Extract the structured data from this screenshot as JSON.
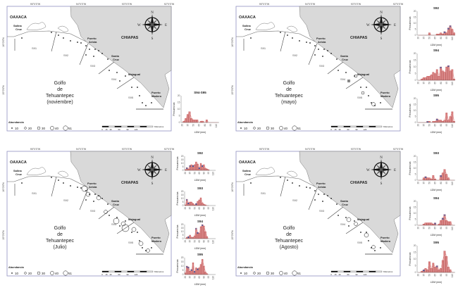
{
  "common": {
    "longitudes": [
      "95°0'0\"W",
      "94°0'0\"W",
      "93°0'0\"W",
      "92°0'0\"W"
    ],
    "latitudes": [
      "16°0'0\"N",
      "15°0'0\"N"
    ],
    "places": {
      "oaxaca": "OAXACA",
      "salina_cruz": [
        "Salina",
        "Cruz"
      ],
      "puerto_arista": [
        "Puerto",
        "Arista"
      ],
      "chiapas": "CHIAPAS",
      "santa_cruz": [
        "Santa",
        "Cruz"
      ],
      "majagual": "Majagual",
      "puerto_madero": [
        "Puerto",
        "Madero"
      ]
    },
    "zones": [
      "S91",
      "S92",
      "S93",
      "S94",
      "S95"
    ],
    "gulf": [
      "Golfo",
      "de",
      "Tehuantepec"
    ],
    "compass": {
      "n": "N",
      "s": "S",
      "e": "E",
      "w": "W"
    },
    "legend": {
      "title": "Abundancia",
      "values": [
        "10",
        "20",
        "30",
        "40",
        "51"
      ]
    },
    "scale": {
      "unit": "Kilómetros",
      "ticks": [
        "0",
        "15",
        "30",
        "60",
        "90",
        "120"
      ]
    },
    "hist_ylabel": "Frecuencias",
    "hist_xlabel": "LDM (mm)",
    "hist_xticks": [
      "20",
      "35",
      "50",
      "65",
      "80",
      "95",
      "110"
    ],
    "hist_yticks": [
      "0",
      "5",
      "10",
      "15",
      "20"
    ],
    "colors": {
      "land": "#d9d9d9",
      "bar": "#d98b8b",
      "bar_edge": "#b03030",
      "blue": "#3f5fa8",
      "frame": "#9090c0"
    }
  },
  "chart_data": [
    {
      "type": "bar",
      "panel": "noviembre",
      "title": "S94-S95",
      "xlabel": "LDM (mm)",
      "ylabel": "Frecuencias",
      "ylim": [
        0,
        20
      ],
      "bin_start": 20,
      "bin_width": 5,
      "values": [
        0,
        1,
        3,
        6,
        8,
        3,
        2,
        2,
        2,
        0,
        1,
        1,
        0,
        2,
        0,
        0,
        0,
        0,
        0,
        0
      ],
      "blue": []
    },
    {
      "type": "bar",
      "panel": "mayo",
      "title": "S92",
      "xlabel": "LDM (mm)",
      "ylabel": "Frecuencias",
      "ylim": [
        0,
        20
      ],
      "bin_start": 20,
      "bin_width": 5,
      "values": [
        0,
        0,
        0,
        0,
        0,
        0,
        2,
        0,
        0,
        0,
        1,
        1,
        2,
        1,
        3,
        2,
        6,
        8,
        5,
        2
      ],
      "blue": [
        14,
        16,
        17
      ]
    },
    {
      "type": "bar",
      "panel": "mayo",
      "title": "S94",
      "xlabel": "LDM (mm)",
      "ylabel": "Frecuencias",
      "ylim": [
        0,
        20
      ],
      "bin_start": 20,
      "bin_width": 5,
      "values": [
        0,
        0,
        1,
        2,
        2,
        3,
        3,
        4,
        6,
        5,
        8,
        3,
        10,
        7,
        6,
        10,
        11,
        7,
        8,
        1
      ],
      "blue": [
        12,
        16
      ]
    },
    {
      "type": "bar",
      "panel": "mayo",
      "title": "S95",
      "xlabel": "LDM (mm)",
      "ylabel": "Frecuencias",
      "ylim": [
        0,
        20
      ],
      "bin_start": 20,
      "bin_width": 5,
      "values": [
        0,
        0,
        0,
        0,
        0,
        1,
        1,
        0,
        1,
        1,
        3,
        2,
        2,
        1,
        2,
        8,
        2,
        5,
        9,
        1
      ],
      "blue": [
        5,
        10
      ]
    },
    {
      "type": "bar",
      "panel": "Julio",
      "title": "S92",
      "xlabel": "LDM (mm)",
      "ylabel": "Frecuencias",
      "ylim": [
        0,
        20
      ],
      "bin_start": 20,
      "bin_width": 5,
      "values": [
        1,
        4,
        2,
        7,
        8,
        7,
        8,
        12,
        9,
        4,
        10,
        7,
        8,
        3,
        2,
        1
      ],
      "blue": [
        1,
        3,
        5,
        9,
        11
      ]
    },
    {
      "type": "bar",
      "panel": "Julio",
      "title": "S93",
      "xlabel": "LDM (mm)",
      "ylabel": "Frecuencias",
      "ylim": [
        0,
        20
      ],
      "bin_start": 20,
      "bin_width": 5,
      "values": [
        1,
        9,
        4,
        5,
        5,
        3,
        1,
        3,
        6,
        8,
        11,
        4,
        2,
        1,
        0,
        0
      ],
      "blue": [
        1,
        2,
        7
      ]
    },
    {
      "type": "bar",
      "panel": "Julio",
      "title": "S94",
      "xlabel": "LDM (mm)",
      "ylabel": "Frecuencias",
      "ylim": [
        0,
        20
      ],
      "bin_start": 20,
      "bin_width": 5,
      "values": [
        0,
        2,
        3,
        5,
        2,
        2,
        4,
        15,
        9,
        8,
        17,
        20,
        18,
        10,
        3,
        0
      ],
      "blue": [
        2,
        7,
        8,
        11
      ]
    },
    {
      "type": "bar",
      "panel": "Julio",
      "title": "S95",
      "xlabel": "LDM (mm)",
      "ylabel": "Frecuencias",
      "ylim": [
        0,
        20
      ],
      "bin_start": 20,
      "bin_width": 5,
      "values": [
        2,
        10,
        9,
        4,
        6,
        14,
        4,
        8,
        7,
        8,
        12,
        18,
        10,
        3,
        1,
        0
      ],
      "blue": [
        1,
        2,
        4,
        6,
        8
      ]
    },
    {
      "type": "bar",
      "panel": "Agosto",
      "title": "S93",
      "xlabel": "LDM (mm)",
      "ylabel": "Frecuencias",
      "ylim": [
        0,
        20
      ],
      "bin_start": 20,
      "bin_width": 5,
      "values": [
        0,
        0,
        0,
        2,
        3,
        2,
        2,
        1,
        4,
        1,
        0,
        0,
        4,
        6,
        9,
        5,
        2,
        0,
        0,
        0
      ],
      "blue": [
        4,
        12
      ]
    },
    {
      "type": "bar",
      "panel": "Agosto",
      "title": "S94",
      "xlabel": "LDM (mm)",
      "ylabel": "Frecuencias",
      "ylim": [
        0,
        20
      ],
      "bin_start": 20,
      "bin_width": 5,
      "values": [
        0,
        0,
        0,
        1,
        2,
        2,
        2,
        2,
        1,
        2,
        0,
        1,
        4,
        6,
        9,
        4,
        3,
        3,
        0,
        0
      ],
      "blue": [
        9,
        13,
        14
      ]
    },
    {
      "type": "bar",
      "panel": "Agosto",
      "title": "S95",
      "xlabel": "LDM (mm)",
      "ylabel": "Frecuencias",
      "ylim": [
        0,
        20
      ],
      "bin_start": 20,
      "bin_width": 5,
      "values": [
        0,
        0,
        1,
        2,
        3,
        2,
        8,
        3,
        7,
        4,
        5,
        2,
        3,
        9,
        16,
        12,
        4,
        2,
        0,
        0
      ],
      "blue": [
        3,
        10
      ]
    }
  ],
  "panels": [
    {
      "month": "(noviembre)"
    },
    {
      "month": "(mayo)"
    },
    {
      "month": "(Julio)"
    },
    {
      "month": "(Agosto)"
    }
  ]
}
